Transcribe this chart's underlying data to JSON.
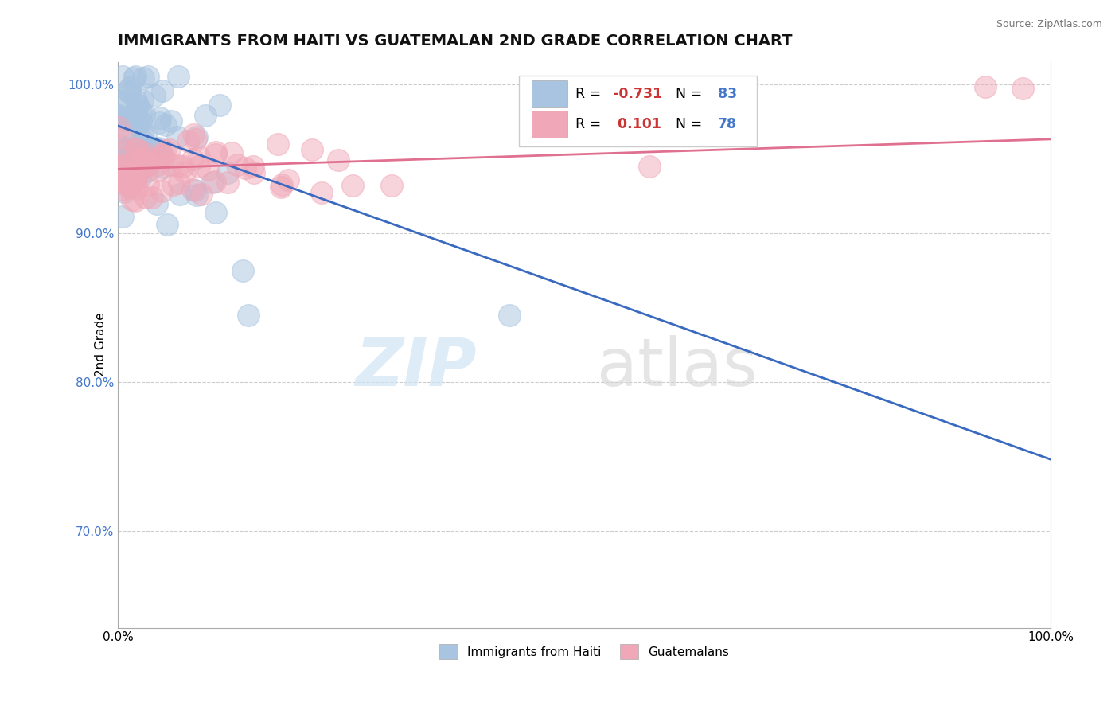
{
  "title": "IMMIGRANTS FROM HAITI VS GUATEMALAN 2ND GRADE CORRELATION CHART",
  "source_text": "Source: ZipAtlas.com",
  "ylabel": "2nd Grade",
  "xlim": [
    0.0,
    1.0
  ],
  "ylim": [
    0.635,
    1.015
  ],
  "ytick_values": [
    0.7,
    0.8,
    0.9,
    1.0
  ],
  "ytick_labels": [
    "70.0%",
    "80.0%",
    "90.0%",
    "100.0%"
  ],
  "grid_color": "#cccccc",
  "background_color": "#ffffff",
  "haiti_color": "#a8c4e0",
  "guatemalan_color": "#f0a8b8",
  "haiti_R": -0.731,
  "haiti_N": 83,
  "guatemalan_R": 0.101,
  "guatemalan_N": 78,
  "haiti_line_color": "#3a6abf",
  "guatemalan_line_color": "#e07090",
  "haiti_label": "Immigrants from Haiti",
  "guatemalan_label": "Guatemalans",
  "title_fontsize": 14,
  "label_fontsize": 11,
  "tick_fontsize": 11,
  "legend_r_color": "#cc3333",
  "legend_n_color": "#4477cc",
  "haiti_trend_x0": 0.0,
  "haiti_trend_y0": 0.972,
  "haiti_trend_x1": 1.0,
  "haiti_trend_y1": 0.748,
  "guatemalan_trend_x0": 0.0,
  "guatemalan_trend_y0": 0.943,
  "guatemalan_trend_x1": 1.0,
  "guatemalan_trend_y1": 0.963
}
